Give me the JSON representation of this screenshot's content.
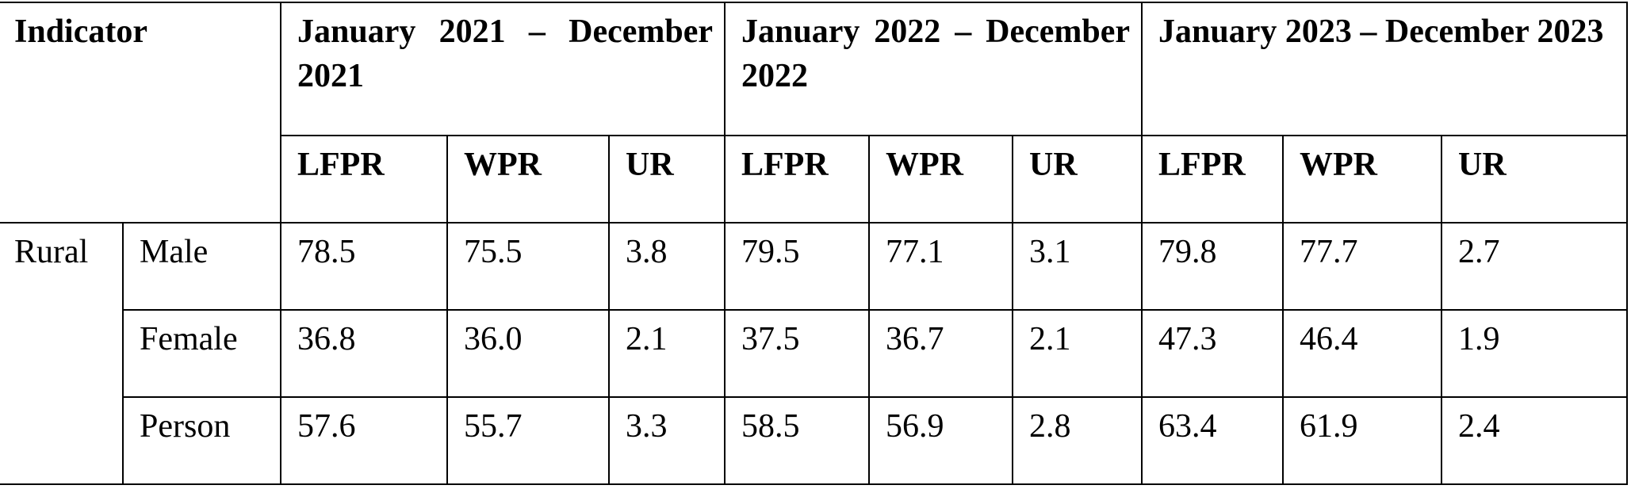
{
  "table": {
    "indicator_label": "Indicator",
    "periods": [
      {
        "label": "January 2021 – December 2021"
      },
      {
        "label": "January 2022 – December 2022"
      },
      {
        "label": "January 2023 – December 2023"
      }
    ],
    "measures": [
      "LFPR",
      "WPR",
      "UR"
    ],
    "area": "Rural",
    "rows": [
      {
        "label": "Male",
        "values": [
          "78.5",
          "75.5",
          "3.8",
          "79.5",
          "77.1",
          "3.1",
          "79.8",
          "77.7",
          "2.7"
        ]
      },
      {
        "label": "Female",
        "values": [
          "36.8",
          "36.0",
          "2.1",
          "37.5",
          "36.7",
          "2.1",
          "47.3",
          "46.4",
          "1.9"
        ]
      },
      {
        "label": "Person",
        "values": [
          "57.6",
          "55.7",
          "3.3",
          "58.5",
          "56.9",
          "2.8",
          "63.4",
          "61.9",
          "2.4"
        ]
      }
    ]
  }
}
